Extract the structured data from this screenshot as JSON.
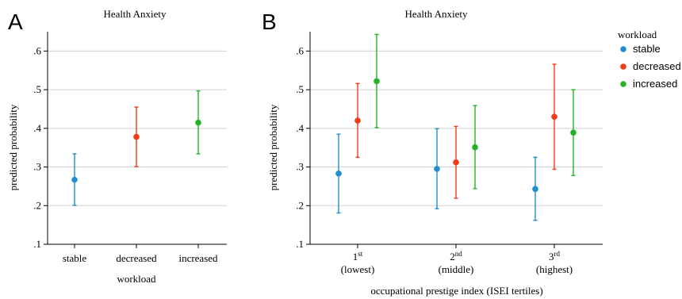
{
  "chart_data": [
    {
      "panel_letter": "A",
      "type": "errorbar",
      "title": "Health Anxiety",
      "ylabel": "predicted probability",
      "xlabel": "workload",
      "ylim": [
        0.1,
        0.65
      ],
      "yticks": [
        0.1,
        0.2,
        0.3,
        0.4,
        0.5,
        0.6
      ],
      "ytick_labels": [
        ".1",
        ".2",
        ".3",
        ".4",
        ".5",
        ".6"
      ],
      "grid": true,
      "categories": [
        "stable",
        "decreased",
        "increased"
      ],
      "points": [
        {
          "category": "stable",
          "value": 0.267,
          "low": 0.201,
          "high": 0.334,
          "color": "#1f8fcf"
        },
        {
          "category": "decreased",
          "value": 0.378,
          "low": 0.301,
          "high": 0.455,
          "color": "#f03c18"
        },
        {
          "category": "increased",
          "value": 0.415,
          "low": 0.334,
          "high": 0.497,
          "color": "#22b422"
        }
      ]
    },
    {
      "panel_letter": "B",
      "type": "errorbar",
      "title": "Health Anxiety",
      "ylabel": "predicted probability",
      "xlabel": "occupational prestige index (ISEI tertiles)",
      "ylim": [
        0.1,
        0.65
      ],
      "yticks": [
        0.1,
        0.2,
        0.3,
        0.4,
        0.5,
        0.6
      ],
      "ytick_labels": [
        ".1",
        ".2",
        ".3",
        ".4",
        ".5",
        ".6"
      ],
      "grid": true,
      "legend_title": "workload",
      "legend_position": "right",
      "categories": [
        {
          "num": "1",
          "sup": "st",
          "sub": "(lowest)"
        },
        {
          "num": "2",
          "sup": "nd",
          "sub": "(middle)"
        },
        {
          "num": "3",
          "sup": "rd",
          "sub": "(highest)"
        }
      ],
      "series": [
        {
          "name": "stable",
          "color": "#1f8fcf",
          "values": [
            0.283,
            0.295,
            0.243
          ],
          "low": [
            0.181,
            0.192,
            0.162
          ],
          "high": [
            0.385,
            0.399,
            0.325
          ]
        },
        {
          "name": "decreased",
          "color": "#f03c18",
          "values": [
            0.42,
            0.312,
            0.43
          ],
          "low": [
            0.325,
            0.219,
            0.294
          ],
          "high": [
            0.516,
            0.405,
            0.566
          ]
        },
        {
          "name": "increased",
          "color": "#22b422",
          "values": [
            0.522,
            0.351,
            0.389
          ],
          "low": [
            0.402,
            0.244,
            0.278
          ],
          "high": [
            0.643,
            0.459,
            0.5
          ]
        }
      ]
    }
  ]
}
